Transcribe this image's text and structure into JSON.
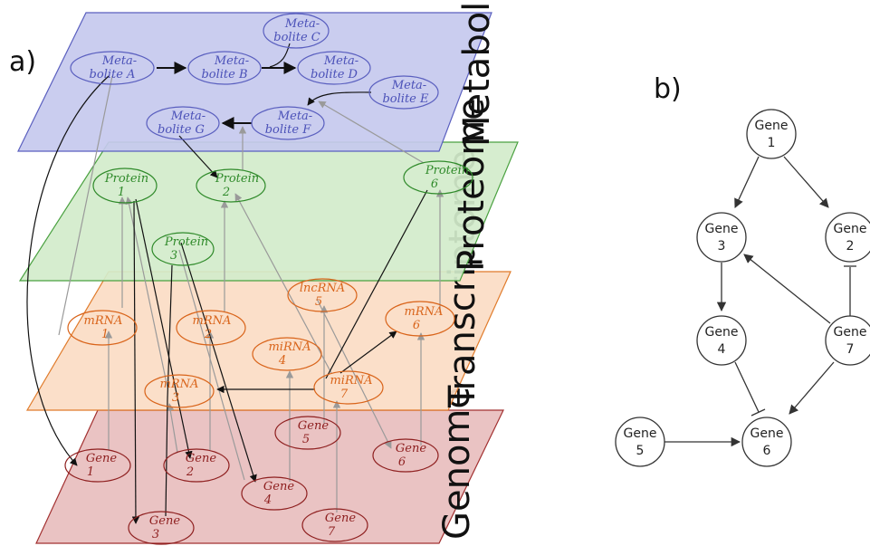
{
  "panel_a": {
    "letter": "a)",
    "layers": [
      {
        "name": "metabolome",
        "label": "Metabolome",
        "fill": "#c6c9ee",
        "stroke": "#5a5fbf",
        "text_color": "#4b51b8"
      },
      {
        "name": "proteome",
        "label": "Proteome",
        "fill": "#d2eccb",
        "stroke": "#4aa140",
        "text_color": "#2f8a2a"
      },
      {
        "name": "transcriptome",
        "label": "Transcriptome",
        "fill": "#fbdcc4",
        "stroke": "#e07b2b",
        "text_color": "#d9641a"
      },
      {
        "name": "genome",
        "label": "Genome",
        "fill": "#eac3c3",
        "stroke": "#a23030",
        "text_color": "#8e1f1f"
      }
    ],
    "nodes": {
      "metabolite_a": {
        "line1": "Meta-",
        "line2": "bolite A"
      },
      "metabolite_b": {
        "line1": "Meta-",
        "line2": "bolite B"
      },
      "metabolite_c": {
        "line1": "Meta-",
        "line2": "bolite C"
      },
      "metabolite_d": {
        "line1": "Meta-",
        "line2": "bolite D"
      },
      "metabolite_e": {
        "line1": "Meta-",
        "line2": "bolite E"
      },
      "metabolite_f": {
        "line1": "Meta-",
        "line2": "bolite F"
      },
      "metabolite_g": {
        "line1": "Meta-",
        "line2": "bolite G"
      },
      "protein_1": {
        "line1": "Protein",
        "line2": "1"
      },
      "protein_2": {
        "line1": "Protein",
        "line2": "2"
      },
      "protein_3": {
        "line1": "Protein",
        "line2": "3"
      },
      "protein_6": {
        "line1": "Protein",
        "line2": "6"
      },
      "mrna_1": {
        "line1": "mRNA",
        "line2": "1"
      },
      "mrna_2": {
        "line1": "mRNA",
        "line2": "2"
      },
      "mrna_3": {
        "line1": "mRNA",
        "line2": "3"
      },
      "mrna_6": {
        "line1": "mRNA",
        "line2": "6"
      },
      "lncrna_5": {
        "line1": "lncRNA",
        "line2": "5"
      },
      "mirna_4": {
        "line1": "miRNA",
        "line2": "4"
      },
      "mirna_7": {
        "line1": "miRNA",
        "line2": "7"
      },
      "gene_1": {
        "line1": "Gene",
        "line2": "1"
      },
      "gene_2": {
        "line1": "Gene",
        "line2": "2"
      },
      "gene_3": {
        "line1": "Gene",
        "line2": "3"
      },
      "gene_4": {
        "line1": "Gene",
        "line2": "4"
      },
      "gene_5": {
        "line1": "Gene",
        "line2": "5"
      },
      "gene_6": {
        "line1": "Gene",
        "line2": "6"
      },
      "gene_7": {
        "line1": "Gene",
        "line2": "7"
      }
    }
  },
  "panel_b": {
    "letter": "b)",
    "nodes": {
      "gene1": {
        "line1": "Gene",
        "line2": "1"
      },
      "gene2": {
        "line1": "Gene",
        "line2": "2"
      },
      "gene3": {
        "line1": "Gene",
        "line2": "3"
      },
      "gene4": {
        "line1": "Gene",
        "line2": "4"
      },
      "gene5": {
        "line1": "Gene",
        "line2": "5"
      },
      "gene6": {
        "line1": "Gene",
        "line2": "6"
      },
      "gene7": {
        "line1": "Gene",
        "line2": "7"
      }
    },
    "edges": [
      {
        "from": "gene1",
        "to": "gene3",
        "type": "activation"
      },
      {
        "from": "gene1",
        "to": "gene2",
        "type": "activation"
      },
      {
        "from": "gene3",
        "to": "gene4",
        "type": "activation"
      },
      {
        "from": "gene7",
        "to": "gene3",
        "type": "activation"
      },
      {
        "from": "gene7",
        "to": "gene2",
        "type": "inhibition"
      },
      {
        "from": "gene7",
        "to": "gene6",
        "type": "activation"
      },
      {
        "from": "gene4",
        "to": "gene6",
        "type": "inhibition"
      },
      {
        "from": "gene5",
        "to": "gene6",
        "type": "activation"
      }
    ]
  }
}
